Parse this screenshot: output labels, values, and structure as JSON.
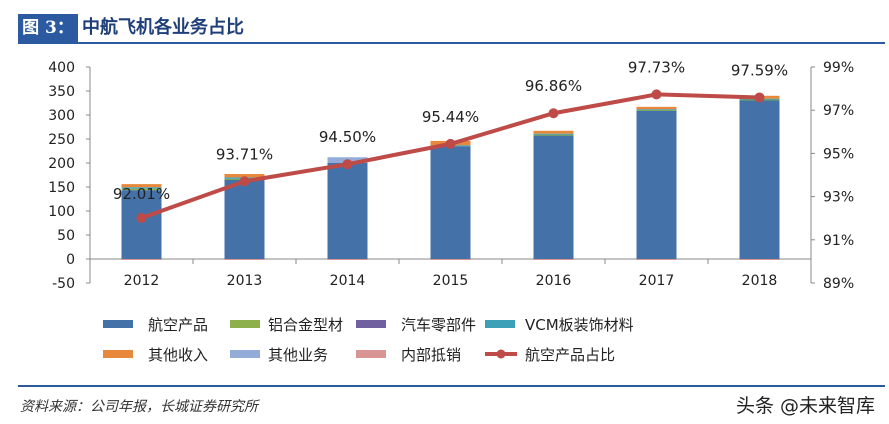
{
  "header": {
    "figure_label": "图 3：",
    "title": "中航飞机各业务占比"
  },
  "footer": {
    "source": "资料来源：公司年报，长城证券研究所",
    "watermark": "头条 @未来智库"
  },
  "chart_data": {
    "type": "bar",
    "stacked": true,
    "title": "中航飞机各业务占比",
    "categories": [
      "2012",
      "2013",
      "2014",
      "2015",
      "2016",
      "2017",
      "2018"
    ],
    "y_left": {
      "range": [
        -50,
        400
      ],
      "ticks": [
        -50,
        0,
        50,
        100,
        150,
        200,
        250,
        300,
        350,
        400
      ]
    },
    "y_right": {
      "range": [
        89,
        99
      ],
      "ticks": [
        "89%",
        "91%",
        "93%",
        "95%",
        "97%",
        "99%"
      ],
      "unit": "%"
    },
    "grid": false,
    "legend_placement": "bottom",
    "series": [
      {
        "name": "航空产品",
        "type": "bar",
        "color": "#4472a8",
        "values": [
          143.5,
          166,
          200,
          235,
          258.6,
          310,
          332
        ]
      },
      {
        "name": "铝合金型材",
        "type": "bar",
        "color": "#8db04c",
        "values": [
          3,
          1,
          0,
          0,
          0.5,
          0.5,
          0.5
        ]
      },
      {
        "name": "汽车零部件",
        "type": "bar",
        "color": "#7060a0",
        "values": [
          0,
          0,
          0,
          0,
          0,
          0,
          0
        ]
      },
      {
        "name": "VCM板装饰材料",
        "type": "bar",
        "color": "#3ba0b8",
        "values": [
          3,
          3,
          0,
          2,
          2,
          1.5,
          1.5
        ]
      },
      {
        "name": "其他收入",
        "type": "bar",
        "color": "#e8883a",
        "values": [
          6.5,
          7,
          0,
          9,
          6,
          5,
          6
        ]
      },
      {
        "name": "其他业务",
        "type": "bar",
        "color": "#93acd8",
        "values": [
          0,
          0,
          12,
          0,
          0,
          0,
          0
        ]
      },
      {
        "name": "内部抵销",
        "type": "bar",
        "color": "#d99594",
        "values": [
          -1,
          -1,
          -1,
          -1,
          -1,
          -1,
          -1
        ]
      },
      {
        "name": "航空产品占比",
        "type": "line",
        "axis": "right",
        "color": "#be4b48",
        "values": [
          92.01,
          93.71,
          94.5,
          95.44,
          96.86,
          97.73,
          97.59
        ],
        "labels": [
          "92.01%",
          "93.71%",
          "94.50%",
          "95.44%",
          "96.86%",
          "97.73%",
          "97.59%"
        ]
      }
    ]
  }
}
